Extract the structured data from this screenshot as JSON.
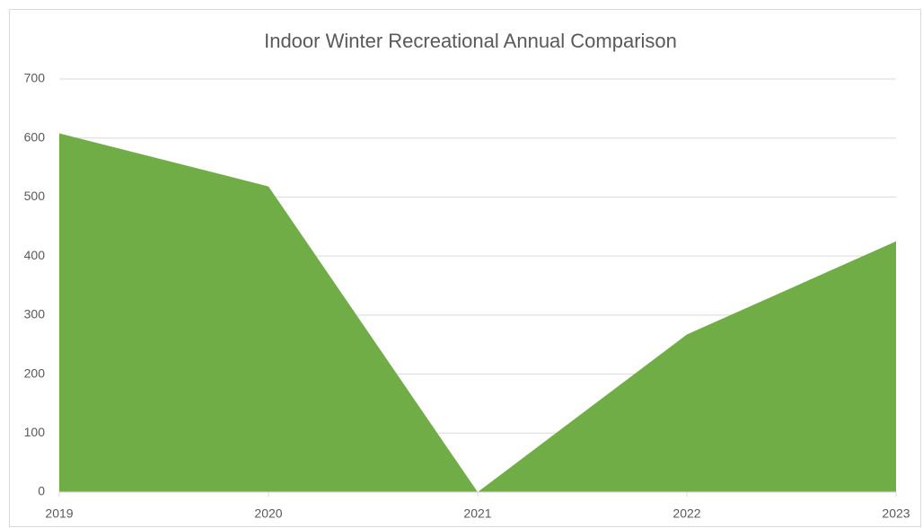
{
  "chart_data": {
    "type": "area",
    "title": "Indoor Winter Recreational Annual Comparison",
    "categories": [
      "2019",
      "2020",
      "2021",
      "2022",
      "2023"
    ],
    "values": [
      608,
      518,
      0,
      267,
      425
    ],
    "color": "#70ad47",
    "ylim": [
      0,
      700
    ],
    "yticks": [
      0,
      100,
      200,
      300,
      400,
      500,
      600,
      700
    ],
    "grid": true
  }
}
